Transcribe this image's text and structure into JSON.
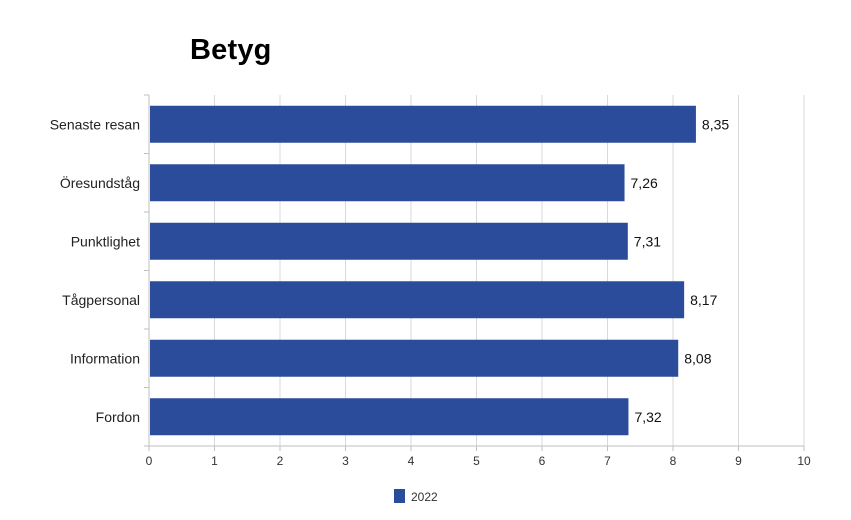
{
  "chart_data": {
    "type": "bar",
    "orientation": "horizontal",
    "title": "Betyg",
    "categories": [
      "Senaste resan",
      "Öresundståg",
      "Punktlighet",
      "Tågpersonal",
      "Information",
      "Fordon"
    ],
    "series": [
      {
        "name": "2022",
        "values": [
          8.35,
          7.26,
          7.31,
          8.17,
          8.08,
          7.32
        ],
        "value_labels": [
          "8,35",
          "7,26",
          "7,31",
          "8,17",
          "8,08",
          "7,32"
        ],
        "color": "#2b4c9a"
      }
    ],
    "xlim": [
      0,
      10
    ],
    "x_ticks": [
      "0",
      "1",
      "2",
      "3",
      "4",
      "5",
      "6",
      "7",
      "8",
      "9",
      "10"
    ],
    "grid": true,
    "legend": "bottom-center"
  }
}
